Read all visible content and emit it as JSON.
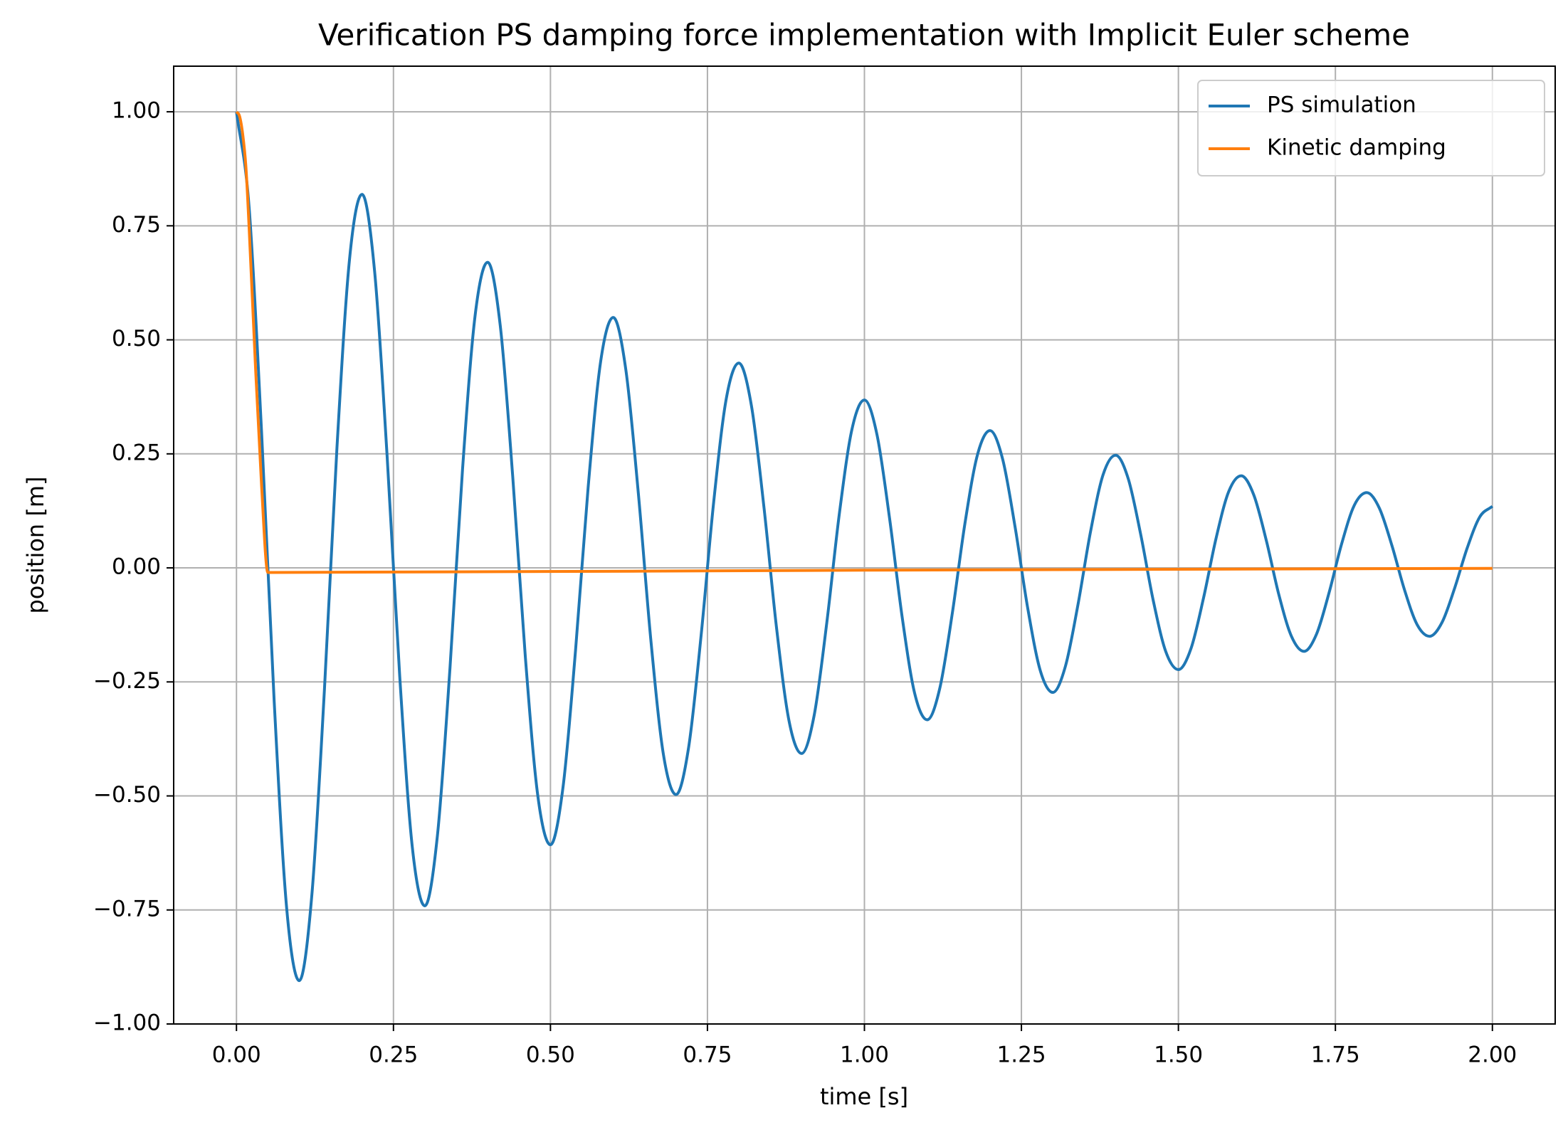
{
  "chart_data": {
    "type": "line",
    "title": "Verification PS damping force implementation with Implicit Euler scheme",
    "xlabel": "time [s]",
    "ylabel": "position [m]",
    "xlim": [
      -0.1,
      2.1
    ],
    "ylim": [
      -1.0,
      1.1
    ],
    "xticks": [
      {
        "value": 0,
        "label": "0.00"
      },
      {
        "value": 0.25,
        "label": "0.25"
      },
      {
        "value": 0.5,
        "label": "0.50"
      },
      {
        "value": 0.75,
        "label": "0.75"
      },
      {
        "value": 1.0,
        "label": "1.00"
      },
      {
        "value": 1.25,
        "label": "1.25"
      },
      {
        "value": 1.5,
        "label": "1.50"
      },
      {
        "value": 1.75,
        "label": "1.75"
      },
      {
        "value": 2.0,
        "label": "2.00"
      }
    ],
    "yticks": [
      {
        "value": -1.0,
        "label": "−1.00"
      },
      {
        "value": -0.75,
        "label": "−0.75"
      },
      {
        "value": -0.5,
        "label": "−0.50"
      },
      {
        "value": -0.25,
        "label": "−0.25"
      },
      {
        "value": 0,
        "label": "0.00"
      },
      {
        "value": 0.25,
        "label": "0.25"
      },
      {
        "value": 0.5,
        "label": "0.50"
      },
      {
        "value": 0.75,
        "label": "0.75"
      },
      {
        "value": 1.0,
        "label": "1.00"
      }
    ],
    "grid": true,
    "legend": "upper right",
    "series": [
      {
        "name": "PS simulation",
        "color": "#1f77b4",
        "x": [
          0,
          0.02,
          0.04,
          0.06,
          0.08,
          0.1,
          0.12,
          0.14,
          0.16,
          0.18,
          0.2,
          0.22,
          0.24,
          0.26,
          0.28,
          0.3,
          0.32,
          0.34,
          0.36,
          0.38,
          0.4,
          0.42,
          0.44,
          0.46,
          0.48,
          0.5,
          0.52,
          0.54,
          0.56,
          0.58,
          0.6,
          0.62,
          0.64,
          0.66,
          0.68,
          0.7,
          0.72,
          0.74,
          0.76,
          0.78,
          0.8,
          0.82,
          0.84,
          0.86,
          0.88,
          0.9,
          0.92,
          0.94,
          0.96,
          0.98,
          1.0,
          1.02,
          1.04,
          1.06,
          1.08,
          1.1,
          1.12,
          1.14,
          1.16,
          1.18,
          1.2,
          1.22,
          1.24,
          1.26,
          1.28,
          1.3,
          1.32,
          1.34,
          1.36,
          1.38,
          1.4,
          1.42,
          1.44,
          1.46,
          1.48,
          1.5,
          1.52,
          1.54,
          1.56,
          1.58,
          1.6,
          1.62,
          1.64,
          1.66,
          1.68,
          1.7,
          1.72,
          1.74,
          1.76,
          1.78,
          1.8,
          1.82,
          1.84,
          1.86,
          1.88,
          1.9,
          1.92,
          1.94,
          1.96,
          1.98,
          2.0
        ],
        "values": [
          1,
          0.793,
          0.297,
          -0.291,
          -0.747,
          -0.905,
          -0.718,
          -0.269,
          0.263,
          0.676,
          0.819,
          0.65,
          0.243,
          -0.238,
          -0.612,
          -0.741,
          -0.587,
          -0.22,
          0.216,
          0.553,
          0.67,
          0.532,
          0.199,
          -0.195,
          -0.501,
          -0.607,
          -0.481,
          -0.18,
          0.176,
          0.453,
          0.549,
          0.435,
          0.163,
          -0.16,
          -0.41,
          -0.497,
          -0.394,
          -0.147,
          0.145,
          0.371,
          0.449,
          0.356,
          0.133,
          -0.131,
          -0.336,
          -0.407,
          -0.323,
          -0.121,
          0.118,
          0.303,
          0.368,
          0.292,
          0.109,
          -0.107,
          -0.275,
          -0.333,
          -0.264,
          -0.099,
          0.097,
          0.248,
          0.301,
          0.239,
          0.089,
          -0.088,
          -0.225,
          -0.273,
          -0.216,
          -0.081,
          0.079,
          0.204,
          0.247,
          0.196,
          0.073,
          -0.072,
          -0.184,
          -0.223,
          -0.177,
          -0.066,
          0.065,
          0.167,
          0.202,
          0.16,
          0.06,
          -0.059,
          -0.15,
          -0.183,
          -0.145,
          -0.054,
          0.053,
          0.137,
          0.165,
          0.131,
          0.049,
          -0.048,
          -0.124,
          -0.15,
          -0.119,
          -0.044,
          0.044,
          0.112,
          0.135
        ]
      },
      {
        "name": "Kinetic damping",
        "color": "#ff7f0e",
        "x": [
          0,
          0.005,
          0.01,
          0.015,
          0.02,
          0.03,
          0.04,
          0.05,
          1.0,
          2.0
        ],
        "values": [
          1,
          0.99,
          0.95,
          0.88,
          0.75,
          0.45,
          0.18,
          -0.01,
          -0.005,
          -0.001
        ]
      }
    ]
  }
}
